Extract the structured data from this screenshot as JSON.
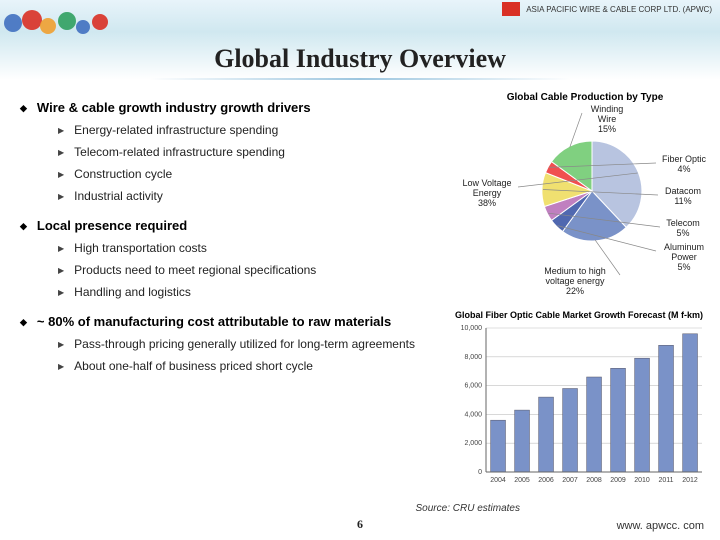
{
  "logo": {
    "company_text": "ASIA PACIFIC WIRE & CABLE CORP LTD. (APWC)"
  },
  "title": "Global Industry Overview",
  "sections": [
    {
      "heading": "Wire & cable growth industry growth drivers",
      "items": [
        "Energy-related infrastructure spending",
        "Telecom-related infrastructure spending",
        "Construction cycle",
        "Industrial activity"
      ]
    },
    {
      "heading": "Local presence required",
      "items": [
        "High transportation costs",
        "Products need to meet regional specifications",
        "Handling and logistics"
      ]
    },
    {
      "heading": "~ 80% of manufacturing cost attributable to raw materials",
      "items": [
        "Pass-through pricing generally utilized for long-term agreements",
        "About one-half of business priced short cycle"
      ]
    }
  ],
  "pie": {
    "title": "Global Cable Production by Type",
    "slices": [
      {
        "label": "Low Voltage Energy",
        "pct": 38,
        "color": "#b8c4e0"
      },
      {
        "label": "Medium to high voltage energy",
        "pct": 22,
        "color": "#7a92c8"
      },
      {
        "label": "Aluminum Power",
        "pct": 5,
        "color": "#5068b0"
      },
      {
        "label": "Telecom",
        "pct": 5,
        "color": "#c080c0"
      },
      {
        "label": "Datacom",
        "pct": 11,
        "color": "#f0e070"
      },
      {
        "label": "Fiber Optic",
        "pct": 4,
        "color": "#f05050"
      },
      {
        "label": "Winding Wire",
        "pct": 15,
        "color": "#80d080"
      }
    ],
    "label_fontsize": 9,
    "background": "#ffffff"
  },
  "bar": {
    "title": "Global Fiber Optic Cable Market Growth Forecast (M f-km)",
    "categories": [
      "2004",
      "2005",
      "2006",
      "2007",
      "2008",
      "2009",
      "2010",
      "2011",
      "2012"
    ],
    "values": [
      3600,
      4300,
      5200,
      5800,
      6600,
      7200,
      7900,
      8800,
      9600
    ],
    "bar_color": "#7a92c8",
    "ylim": [
      0,
      10000
    ],
    "yticks": [
      0,
      2000,
      4000,
      6000,
      8000,
      10000
    ],
    "grid_color": "#c0c0c0",
    "axis_fontsize": 7,
    "background": "#ffffff"
  },
  "source": "Source: CRU estimates",
  "page_number": "6",
  "site_url": "www. apwcc. com",
  "header_deco_colors": [
    "#d93025",
    "#f0a030",
    "#4070c0",
    "#30a060"
  ]
}
